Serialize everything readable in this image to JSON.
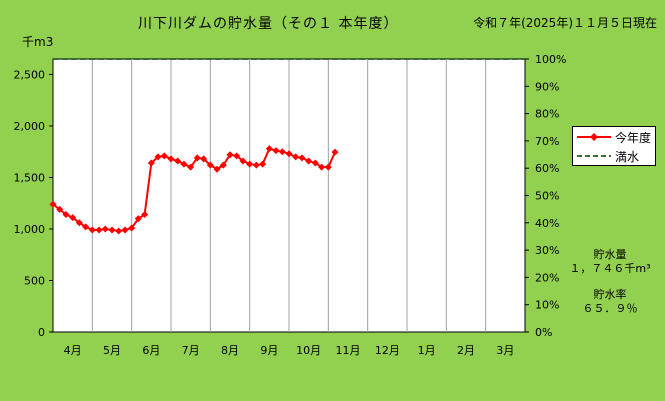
{
  "header": {
    "title": "川下川ダムの貯水量（その１ 本年度）",
    "date": "令和７年(2025年)１１月５日現在",
    "unit": "千m3"
  },
  "info": {
    "storage_label": "貯水量",
    "storage_value": "１，７４６千m³",
    "rate_label": "貯水率",
    "rate_value": "６５．９％"
  },
  "colors": {
    "series": "#ff0000",
    "full": "#3a6b35",
    "plot_bg": "#ffffff"
  },
  "chart_data": {
    "type": "line",
    "title": "川下川ダムの貯水量（その１ 本年度）",
    "ylabel": "千m3",
    "y2label": "",
    "months": [
      "4月",
      "5月",
      "6月",
      "7月",
      "8月",
      "9月",
      "10月",
      "11月",
      "12月",
      "1月",
      "2月",
      "3月"
    ],
    "yticks": [
      "0",
      "500",
      "1,000",
      "1,500",
      "2,000",
      "2,500"
    ],
    "y2ticks": [
      "0%",
      "10%",
      "20%",
      "30%",
      "40%",
      "50%",
      "60%",
      "70%",
      "80%",
      "90%",
      "100%"
    ],
    "ylim": [
      0,
      2650
    ],
    "y2lim": [
      0,
      100
    ],
    "grid": true,
    "legend_position": "right",
    "series": [
      {
        "name": "今年度",
        "x_month_index": [
          0.0,
          0.17,
          0.33,
          0.5,
          0.67,
          0.83,
          1.0,
          1.17,
          1.33,
          1.5,
          1.67,
          1.83,
          2.0,
          2.17,
          2.33,
          2.5,
          2.67,
          2.83,
          3.0,
          3.17,
          3.33,
          3.5,
          3.67,
          3.83,
          4.0,
          4.17,
          4.33,
          4.5,
          4.67,
          4.83,
          5.0,
          5.17,
          5.33,
          5.5,
          5.67,
          5.83,
          6.0,
          6.17,
          6.33,
          6.5,
          6.67,
          6.83,
          7.0,
          7.17
        ],
        "values": [
          1240,
          1190,
          1140,
          1110,
          1060,
          1020,
          990,
          990,
          1000,
          990,
          980,
          990,
          1010,
          1100,
          1140,
          1640,
          1700,
          1710,
          1680,
          1660,
          1630,
          1600,
          1690,
          1680,
          1620,
          1580,
          1620,
          1720,
          1710,
          1660,
          1630,
          1620,
          1630,
          1780,
          1760,
          1750,
          1730,
          1700,
          1690,
          1660,
          1640,
          1600,
          1600,
          1746
        ]
      },
      {
        "name": "満水",
        "values": [
          2650
        ]
      }
    ]
  }
}
